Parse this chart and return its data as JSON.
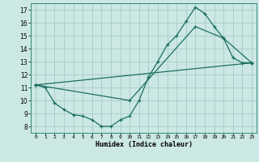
{
  "xlabel": "Humidex (Indice chaleur)",
  "ylabel": "",
  "bg_color": "#cce8e4",
  "grid_color": "#aacfcb",
  "line_color": "#1a6e62",
  "xlim": [
    -0.5,
    23.5
  ],
  "ylim": [
    7.5,
    17.5
  ],
  "yticks": [
    8,
    9,
    10,
    11,
    12,
    13,
    14,
    15,
    16,
    17
  ],
  "xticks": [
    0,
    1,
    2,
    3,
    4,
    5,
    6,
    7,
    8,
    9,
    10,
    11,
    12,
    13,
    14,
    15,
    16,
    17,
    18,
    19,
    20,
    21,
    22,
    23
  ],
  "line1_x": [
    0,
    1,
    2,
    3,
    4,
    5,
    6,
    7,
    8,
    9,
    10,
    11,
    12,
    13,
    14,
    15,
    16,
    17,
    18,
    19,
    20,
    21,
    22,
    23
  ],
  "line1_y": [
    11.2,
    11.0,
    9.8,
    9.3,
    8.9,
    8.8,
    8.5,
    8.0,
    8.0,
    8.5,
    8.8,
    10.0,
    11.8,
    13.0,
    14.3,
    15.0,
    16.1,
    17.2,
    16.7,
    15.7,
    14.8,
    13.3,
    12.9,
    12.9
  ],
  "line2_x": [
    0,
    10,
    17,
    20,
    23
  ],
  "line2_y": [
    11.2,
    10.0,
    15.7,
    14.8,
    12.9
  ],
  "line3_x": [
    0,
    23
  ],
  "line3_y": [
    11.2,
    12.9
  ]
}
